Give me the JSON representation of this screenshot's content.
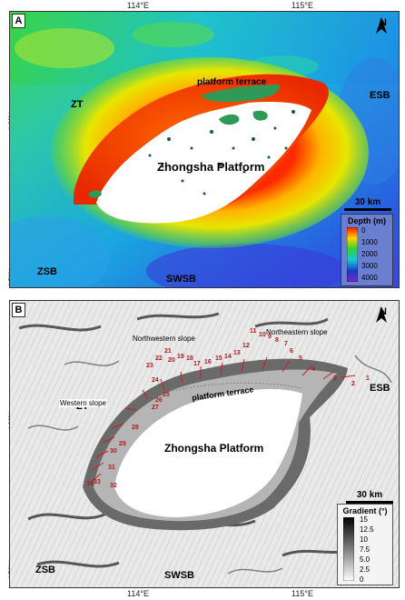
{
  "axes": {
    "lon_ticks": [
      "114°E",
      "115°E"
    ],
    "lat_ticks": [
      "16°N",
      "15°N"
    ]
  },
  "panel_a": {
    "letter": "A",
    "labels": {
      "zt": "ZT",
      "esb": "ESB",
      "zsb": "ZSB",
      "swsb": "SWSB",
      "platform_terrace": "platform terrace",
      "zhongsha_platform": "Zhongsha Platform"
    },
    "north": "N",
    "scale": "30 km",
    "legend": {
      "title": "Depth (m)",
      "values": [
        "0",
        "1000",
        "2000",
        "3000",
        "4000"
      ],
      "colors": [
        "#ff1a00",
        "#ffd200",
        "#2fd23a",
        "#19c6d8",
        "#1a3cc8",
        "#7a26c8"
      ]
    }
  },
  "panel_b": {
    "letter": "B",
    "labels": {
      "zt": "ZT",
      "esb": "ESB",
      "zsb": "ZSB",
      "swsb": "SWSB",
      "platform_terrace": "platform terrace",
      "zhongsha_platform": "Zhongsha Platform",
      "northwestern_slope": "Northwestern slope",
      "northeastern_slope": "Northeastern slope",
      "western_slope": "Western slope"
    },
    "north": "N",
    "scale": "30 km",
    "legend": {
      "title": "Gradient (°)",
      "values": [
        "15",
        "12.5",
        "10",
        "7.5",
        "5.0",
        "2.5",
        "0"
      ]
    },
    "canyon_numbers": [
      "1",
      "2",
      "3",
      "4",
      "5",
      "6",
      "7",
      "8",
      "9",
      "10",
      "11",
      "12",
      "13",
      "14",
      "15",
      "16",
      "17",
      "18",
      "19",
      "20",
      "21",
      "22",
      "23",
      "24",
      "25",
      "26",
      "27",
      "28",
      "29",
      "30",
      "31",
      "32",
      "33",
      "34"
    ]
  }
}
